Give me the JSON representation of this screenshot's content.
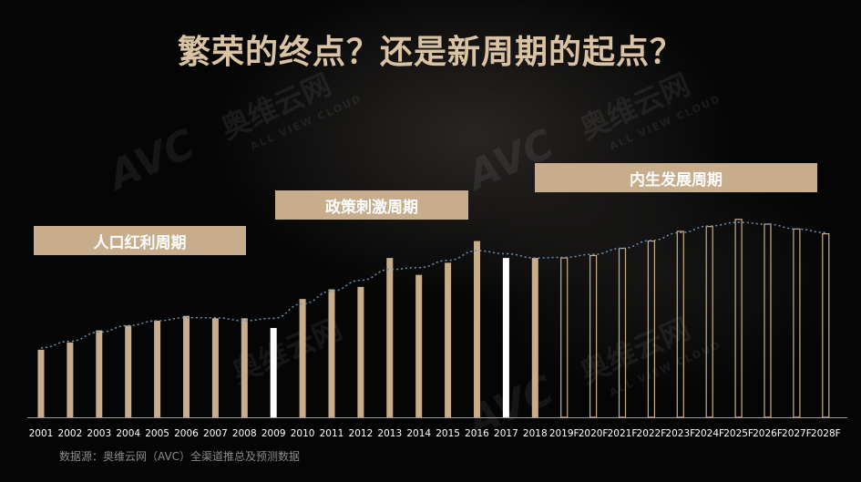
{
  "title": "繁荣的终点？还是新周期的起点？",
  "watermark": {
    "logo_text": "AVC",
    "cn_text": "奥维云网",
    "en_text": "ALL VIEW CLOUD"
  },
  "phases": [
    {
      "label": "人口红利周期"
    },
    {
      "label": "政策刺激周期"
    },
    {
      "label": "内生发展周期"
    }
  ],
  "source": "数据源：奥维云网（AVC）全渠道推总及预测数据",
  "colors": {
    "bar": "#c7ad8c",
    "highlight_bar": "#ffffff",
    "forecast_outline": "#c7ad8c",
    "trend_line": "#6f8fb8",
    "axis": "#9a9a9a",
    "phase_box": "#c7ad8c"
  },
  "chart_data": {
    "type": "bar",
    "categories": [
      "2001",
      "2002",
      "2003",
      "2004",
      "2005",
      "2006",
      "2007",
      "2008",
      "2009",
      "2010",
      "2011",
      "2012",
      "2013",
      "2014",
      "2015",
      "2016",
      "2017",
      "2018",
      "2019F",
      "2020F",
      "2021F",
      "2022F",
      "2023F",
      "2024F",
      "2025F",
      "2026F",
      "2027F",
      "2028F"
    ],
    "values": [
      28,
      31,
      36,
      38,
      40,
      42,
      41,
      41,
      37,
      49,
      53,
      54,
      66,
      59,
      64,
      73,
      66,
      66,
      66,
      67,
      70,
      73,
      77,
      79,
      82,
      80,
      78,
      76
    ],
    "highlight": [
      "2009",
      "2017"
    ],
    "forecast": [
      "2019F",
      "2020F",
      "2021F",
      "2022F",
      "2023F",
      "2024F",
      "2025F",
      "2026F",
      "2027F",
      "2028F"
    ],
    "trend_line": true,
    "ylim": [
      0,
      100
    ]
  }
}
